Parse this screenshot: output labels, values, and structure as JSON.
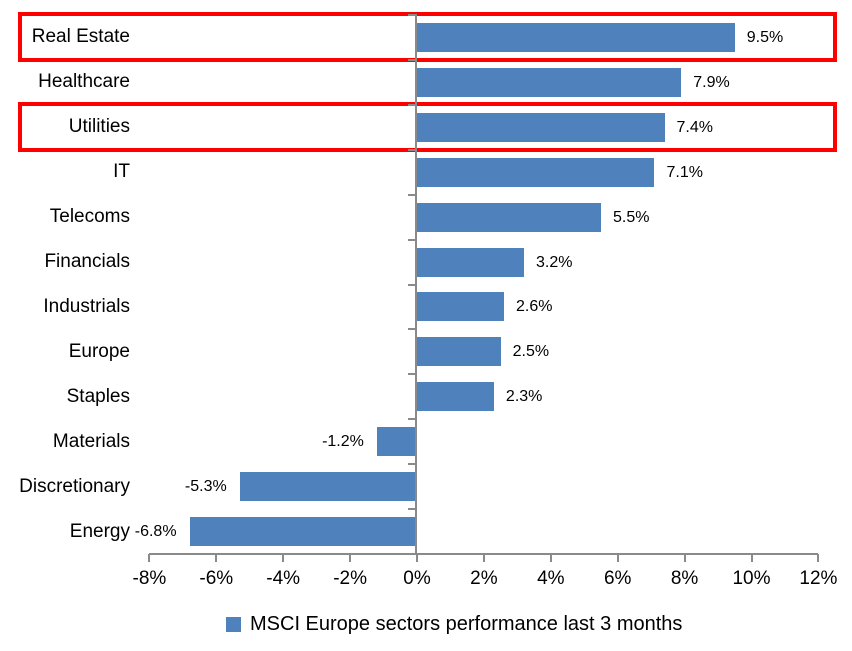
{
  "chart_data": {
    "type": "bar",
    "orientation": "horizontal",
    "categories": [
      "Real Estate",
      "Healthcare",
      "Utilities",
      "IT",
      "Telecoms",
      "Financials",
      "Industrials",
      "Europe",
      "Staples",
      "Materials",
      "Discretionary",
      "Energy"
    ],
    "values": [
      9.5,
      7.9,
      7.4,
      7.1,
      5.5,
      3.2,
      2.6,
      2.5,
      2.3,
      -1.2,
      -5.3,
      -6.8
    ],
    "data_labels": [
      "9.5%",
      "7.9%",
      "7.4%",
      "7.1%",
      "5.5%",
      "3.2%",
      "2.6%",
      "2.5%",
      "2.3%",
      "-1.2%",
      "-5.3%",
      "-6.8%"
    ],
    "x_tick_labels": [
      "-8%",
      "-6%",
      "-4%",
      "-2%",
      "0%",
      "2%",
      "4%",
      "6%",
      "8%",
      "10%",
      "12%"
    ],
    "x_tick_values": [
      -8,
      -6,
      -4,
      -2,
      0,
      2,
      4,
      6,
      8,
      10,
      12
    ],
    "xlim": [
      -8,
      12
    ],
    "grid": false,
    "legend": "MSCI Europe sectors performance last 3 months",
    "legend_position": "bottom",
    "bar_color": "#4F81BD",
    "axis_color": "#8A8A8A",
    "text_color": "#000000",
    "highlighted_categories": [
      "Real Estate",
      "Utilities"
    ],
    "highlight_color": "#FF0000"
  }
}
